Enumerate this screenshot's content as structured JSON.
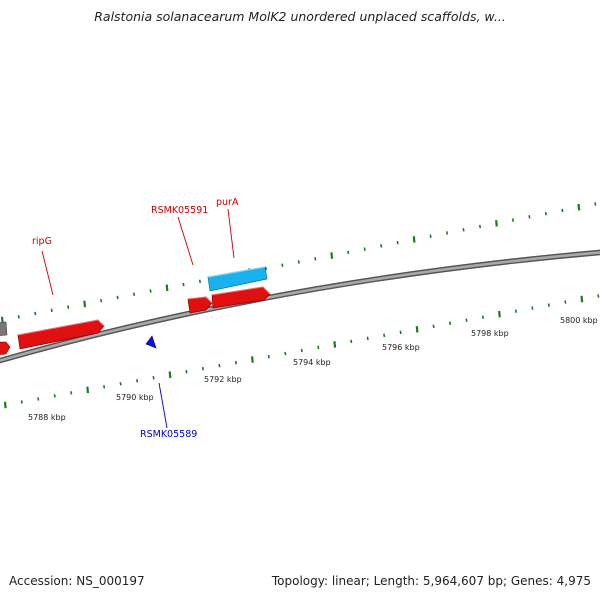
{
  "title": "Ralstonia solanacearum MolK2 unordered unplaced scaffolds, w...",
  "footer": {
    "accession": "Accession: NS_000197",
    "stats": "Topology: linear; Length: 5,964,607 bp; Genes: 4,975"
  },
  "colors": {
    "backbone": "#8a8a8a",
    "tick": "#1f7a1f",
    "gene_red": "#e01010",
    "gene_blue": "#1ab2ee",
    "gene_gray": "#777777",
    "label_red": "#cc0000",
    "label_blue": "#0000cc"
  },
  "scale_labels": [
    "5788 kbp",
    "5790 kbp",
    "5792 kbp",
    "5794 kbp",
    "5796 kbp",
    "5798 kbp",
    "5800 kbp"
  ],
  "gene_labels": {
    "ripG": "ripG",
    "RSMK05591": "RSMK05591",
    "purA": "purA",
    "RSMK05589": "RSMK05589"
  }
}
